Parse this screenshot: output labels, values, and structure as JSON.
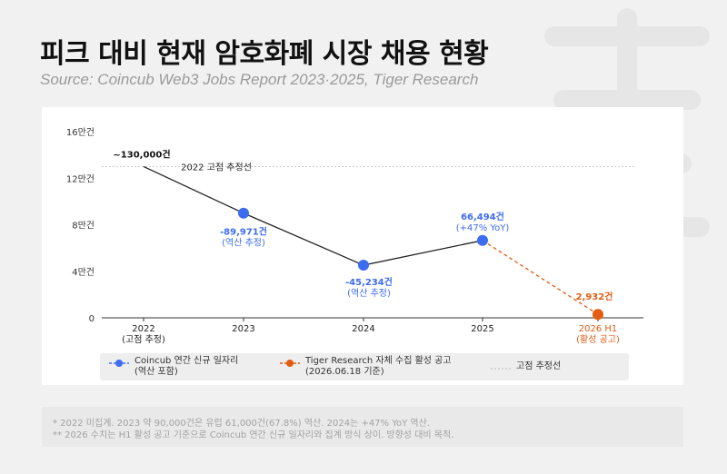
{
  "header": {
    "title": "피크 대비 현재 암호화폐 시장 채용 현황",
    "subtitle": "Source: Coincub Web3 Jobs Report 2023·2025, Tiger Research"
  },
  "colors": {
    "blue": "#3d6cf0",
    "orange": "#e25c12",
    "line_dark": "#222222",
    "grid": "#e4e4e4"
  },
  "chart_data": {
    "type": "line",
    "title": "피크 대비 현재 암호화폐 시장 채용 현황",
    "ylim": [
      0,
      160000
    ],
    "y_ticks": [
      {
        "value": 0,
        "label": "0"
      },
      {
        "value": 40000,
        "label": "4만건"
      },
      {
        "value": 80000,
        "label": "8만건"
      },
      {
        "value": 120000,
        "label": "12만건"
      },
      {
        "value": 160000,
        "label": "16만건"
      }
    ],
    "categories": [
      {
        "label": "2022",
        "sub": "(고점 추정)",
        "color": "#222222"
      },
      {
        "label": "2023",
        "sub": "",
        "color": "#222222"
      },
      {
        "label": "2024",
        "sub": "",
        "color": "#222222"
      },
      {
        "label": "2025",
        "sub": "",
        "color": "#222222"
      },
      {
        "label": "2026 H1",
        "sub": "(활성 공고)",
        "color": "#e25c12"
      }
    ],
    "reference_line": {
      "value": 130000,
      "label": "2022 고점 추정선"
    },
    "series": [
      {
        "name": "Coincub 연간 신규 일자리 (역산 포함)",
        "color": "#3d6cf0",
        "points": [
          {
            "x": 0,
            "y": 130000,
            "marker": false,
            "label": "~130,000건",
            "sublabel": ""
          },
          {
            "x": 1,
            "y": 89971,
            "marker": true,
            "label": "-89,971건",
            "sublabel": "(역산 추정)"
          },
          {
            "x": 2,
            "y": 45234,
            "marker": true,
            "label": "-45,234건",
            "sublabel": "(역산 추정)"
          },
          {
            "x": 3,
            "y": 66494,
            "marker": true,
            "label": "66,494건",
            "sublabel": "(+47% YoY)"
          }
        ]
      },
      {
        "name": "Tiger Research 자체 수집 활성 공고 (2026.06.18 기준)",
        "color": "#e25c12",
        "points": [
          {
            "x": 3,
            "y": 66494,
            "marker": false,
            "label": "",
            "sublabel": ""
          },
          {
            "x": 4,
            "y": 2932,
            "marker": true,
            "label": "2,932건",
            "sublabel": ""
          }
        ]
      }
    ]
  },
  "legend": [
    {
      "line1": "Coincub 연간 신규 일자리",
      "line2": "(역산 포함)",
      "color": "#3d6cf0",
      "style": "dash-dot"
    },
    {
      "line1": "Tiger Research 자체 수집 활성 공고",
      "line2": "(2026.06.18 기준)",
      "color": "#e25c12",
      "style": "dash-dot"
    },
    {
      "line1": "고점 추정선",
      "line2": "",
      "color": "#bbbbbb",
      "style": "dotted"
    }
  ],
  "footnotes": [
    "* 2022 미집계. 2023 약 90,000건은 유럽 61,000건(67.8%) 역산. 2024는 +47% YoY 역산.",
    "** 2026 수치는 H1 활성 공고 기준으로 Coincub 연간 신규 일자리와 집계 방식 상이. 방향성 대비 목적."
  ]
}
